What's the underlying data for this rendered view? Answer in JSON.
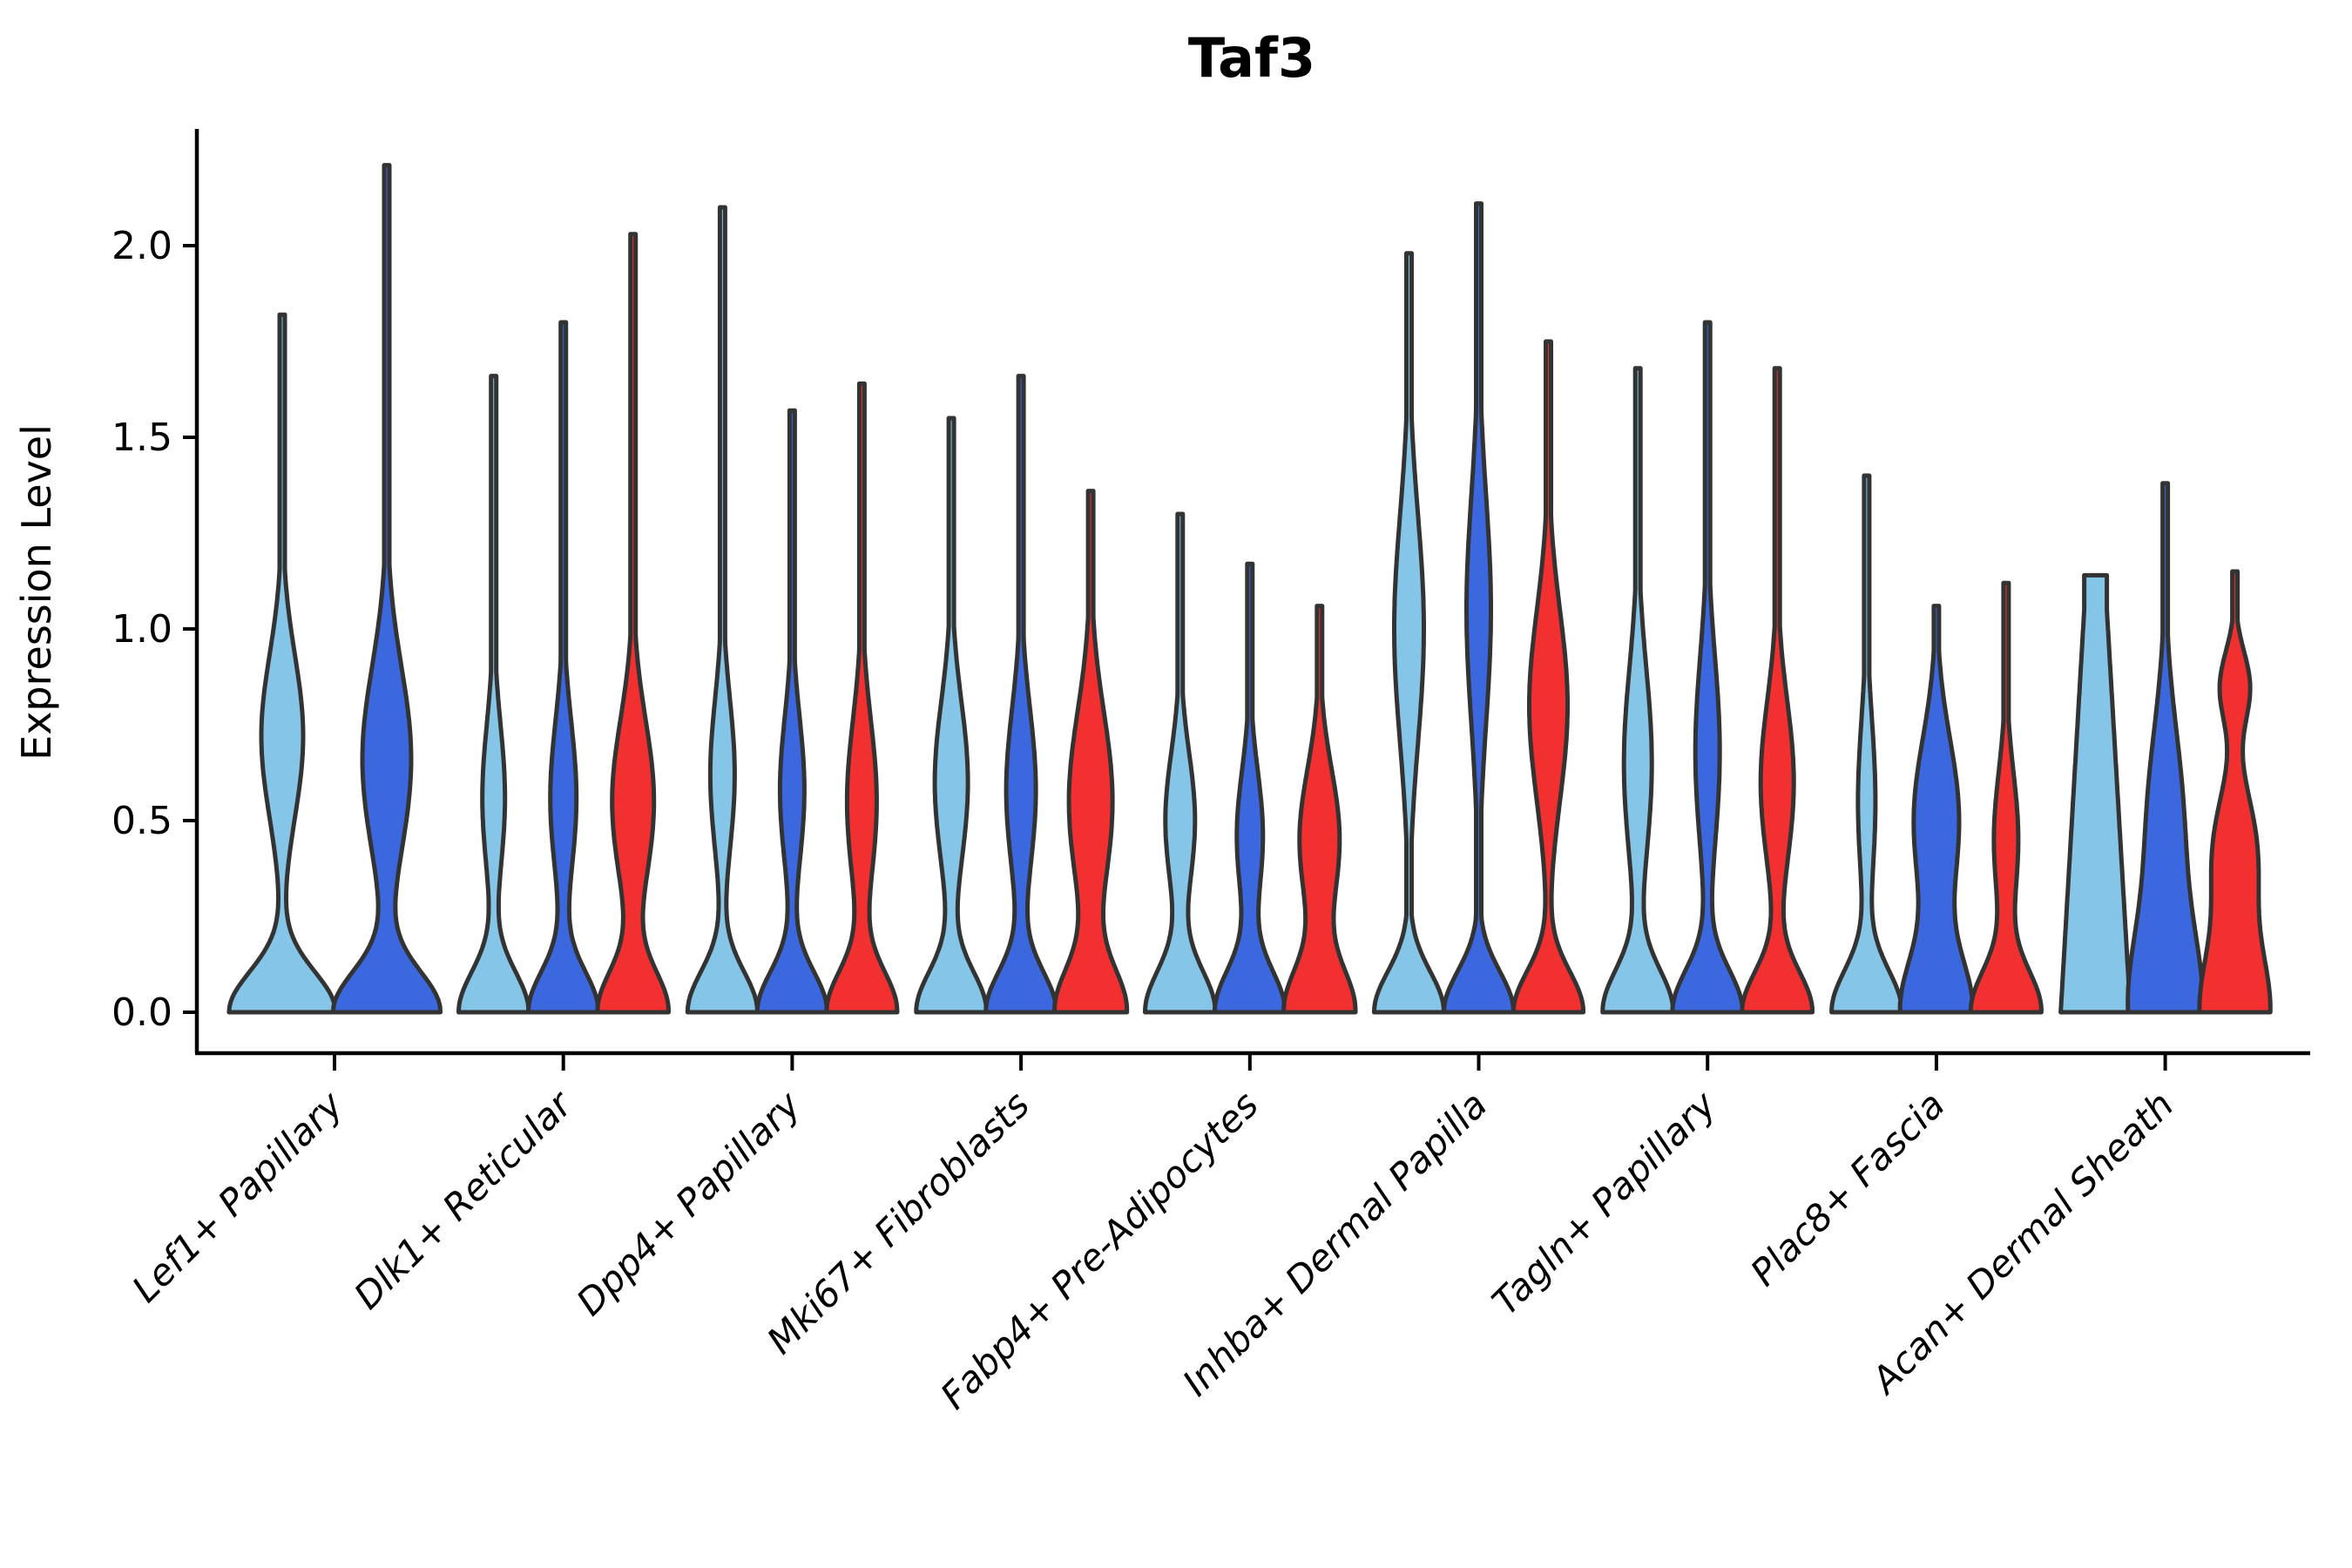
{
  "chart_data": {
    "type": "violin",
    "title": "Taf3",
    "ylabel": "Expression Level",
    "xlabel": "",
    "yticks": [
      0.0,
      0.5,
      1.0,
      1.5,
      2.0
    ],
    "ylim": [
      -0.107,
      2.305
    ],
    "grid": false,
    "legend": "none",
    "colors": {
      "lightblue": "#85C6E8",
      "darkblue": "#3B68DF",
      "red": "#F1302F",
      "outline": "#333333",
      "axis": "#000000"
    },
    "categories": [
      "Lef1+ Papillary",
      "Dlk1+ Reticular",
      "Dpp4+ Papillary",
      "Mki67+ Fibroblasts",
      "Fabp4+ Pre-Adipocytes",
      "Inhba+ Dermal Papilla",
      "Tagln+ Papillary",
      "Plac8+ Fascia",
      "Acan+ Dermal Sheath"
    ],
    "groups": [
      {
        "label": "Lef1+ Papillary",
        "violins": [
          {
            "split": "lightblue",
            "max": 1.82,
            "base": {
              "hw": 61,
              "sigma": 0.15
            },
            "bulges": [
              [
                0.72,
                24,
                0.3
              ]
            ]
          },
          {
            "split": "darkblue",
            "max": 2.21,
            "base": {
              "hw": 61,
              "sigma": 0.15
            },
            "bulges": [
              [
                0.66,
                28,
                0.34
              ]
            ]
          }
        ]
      },
      {
        "label": "Dlk1+ Reticular",
        "violins": [
          {
            "split": "lightblue",
            "max": 1.66,
            "base": {
              "hw": 40,
              "sigma": 0.15
            },
            "bulges": [
              [
                0.56,
                13,
                0.27
              ]
            ]
          },
          {
            "split": "darkblue",
            "max": 1.8,
            "base": {
              "hw": 40,
              "sigma": 0.15
            },
            "bulges": [
              [
                0.56,
                15,
                0.28
              ]
            ]
          },
          {
            "split": "red",
            "max": 2.03,
            "base": {
              "hw": 40,
              "sigma": 0.15
            },
            "bulges": [
              [
                0.55,
                24,
                0.3
              ]
            ]
          }
        ]
      },
      {
        "label": "Dpp4+ Papillary",
        "violins": [
          {
            "split": "lightblue",
            "max": 2.1,
            "base": {
              "hw": 40,
              "sigma": 0.15
            },
            "bulges": [
              [
                0.62,
                14,
                0.28
              ]
            ]
          },
          {
            "split": "darkblue",
            "max": 1.57,
            "base": {
              "hw": 40,
              "sigma": 0.15
            },
            "bulges": [
              [
                0.58,
                14,
                0.27
              ]
            ]
          },
          {
            "split": "red",
            "max": 1.64,
            "base": {
              "hw": 40,
              "sigma": 0.15
            },
            "bulges": [
              [
                0.55,
                17,
                0.3
              ]
            ]
          }
        ]
      },
      {
        "label": "Mki67+ Fibroblasts",
        "violins": [
          {
            "split": "lightblue",
            "max": 1.55,
            "base": {
              "hw": 40,
              "sigma": 0.15
            },
            "bulges": [
              [
                0.6,
                19,
                0.3
              ]
            ]
          },
          {
            "split": "darkblue",
            "max": 1.66,
            "base": {
              "hw": 40,
              "sigma": 0.15
            },
            "bulges": [
              [
                0.58,
                17,
                0.3
              ]
            ]
          },
          {
            "split": "red",
            "max": 1.36,
            "base": {
              "hw": 40,
              "sigma": 0.16
            },
            "bulges": [
              [
                0.55,
                25,
                0.33
              ]
            ]
          }
        ]
      },
      {
        "label": "Fabp4+ Pre-Adipocytes",
        "violins": [
          {
            "split": "lightblue",
            "max": 1.3,
            "base": {
              "hw": 40,
              "sigma": 0.155
            },
            "bulges": [
              [
                0.5,
                17,
                0.25
              ]
            ]
          },
          {
            "split": "darkblue",
            "max": 1.17,
            "base": {
              "hw": 40,
              "sigma": 0.155
            },
            "bulges": [
              [
                0.46,
                15,
                0.24
              ]
            ]
          },
          {
            "split": "red",
            "max": 1.06,
            "base": {
              "hw": 40,
              "sigma": 0.16
            },
            "bulges": [
              [
                0.45,
                23,
                0.26
              ]
            ]
          }
        ]
      },
      {
        "label": "Inhba+ Dermal Papilla",
        "violins": [
          {
            "split": "lightblue",
            "max": 1.98,
            "base": {
              "hw": 40,
              "sigma": 0.15
            },
            "bulges": [
              [
                1.0,
                17,
                0.42
              ]
            ]
          },
          {
            "split": "darkblue",
            "max": 2.11,
            "base": {
              "hw": 40,
              "sigma": 0.15
            },
            "bulges": [
              [
                1.05,
                14,
                0.42
              ]
            ]
          },
          {
            "split": "red",
            "max": 1.75,
            "base": {
              "hw": 40,
              "sigma": 0.15
            },
            "bulges": [
              [
                0.8,
                22,
                0.35
              ]
            ]
          }
        ]
      },
      {
        "label": "Tagln+ Papillary",
        "violins": [
          {
            "split": "lightblue",
            "max": 1.68,
            "base": {
              "hw": 40,
              "sigma": 0.155
            },
            "bulges": [
              [
                0.65,
                16,
                0.35
              ]
            ]
          },
          {
            "split": "darkblue",
            "max": 1.8,
            "base": {
              "hw": 40,
              "sigma": 0.155
            },
            "bulges": [
              [
                0.68,
                14,
                0.35
              ]
            ]
          },
          {
            "split": "red",
            "max": 1.68,
            "base": {
              "hw": 40,
              "sigma": 0.15
            },
            "bulges": [
              [
                0.6,
                19,
                0.3
              ]
            ]
          }
        ]
      },
      {
        "label": "Plac8+ Fascia",
        "violins": [
          {
            "split": "lightblue",
            "max": 1.4,
            "base": {
              "hw": 40,
              "sigma": 0.155
            },
            "bulges": [
              [
                0.55,
                10,
                0.3
              ]
            ]
          },
          {
            "split": "darkblue",
            "max": 1.06,
            "base": {
              "hw": 40,
              "sigma": 0.2
            },
            "bulges": [
              [
                0.5,
                26,
                0.3
              ]
            ]
          },
          {
            "split": "red",
            "max": 1.12,
            "base": {
              "hw": 40,
              "sigma": 0.155
            },
            "bulges": [
              [
                0.45,
                14,
                0.25
              ]
            ]
          }
        ]
      },
      {
        "label": "Acan+ Dermal Sheath",
        "violins": [
          {
            "split": "lightblue",
            "max": 1.14,
            "shape": "column",
            "base": {
              "hw": 40,
              "sigma": 0.3
            },
            "top_hw": 13,
            "knee": 1.05,
            "bulges": []
          },
          {
            "split": "darkblue",
            "max": 1.38,
            "base": {
              "hw": 40,
              "sigma": 0.3
            },
            "bulges": [
              [
                0.5,
                20,
                0.35
              ]
            ]
          },
          {
            "split": "red",
            "max": 1.15,
            "base": {
              "hw": 40,
              "sigma": 0.25
            },
            "bulges": [
              [
                0.42,
                24,
                0.22
              ],
              [
                0.85,
                17,
                0.13
              ]
            ]
          }
        ]
      }
    ],
    "series": [
      {
        "name": "split-lightblue",
        "values": [
          1.82,
          1.66,
          2.1,
          1.55,
          1.3,
          1.98,
          1.68,
          1.4,
          1.14
        ]
      },
      {
        "name": "split-darkblue",
        "values": [
          2.21,
          1.8,
          1.57,
          1.66,
          1.17,
          2.11,
          1.8,
          1.06,
          1.38
        ]
      },
      {
        "name": "split-red",
        "values": [
          null,
          2.03,
          1.64,
          1.36,
          1.06,
          1.75,
          1.68,
          1.12,
          1.15
        ]
      }
    ]
  }
}
